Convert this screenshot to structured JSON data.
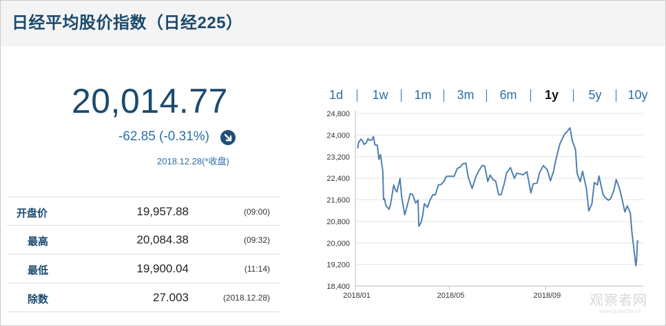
{
  "header": {
    "title": "日经平均股价指数（日经225）"
  },
  "quote": {
    "price": "20,014.77",
    "change": "-62.85 (-0.31%)",
    "datetime": "2018.12.28(*收盘)",
    "direction_icon": "down-arrow-icon"
  },
  "stats": [
    {
      "label": "开盘价",
      "value": "19,957.88",
      "time": "(09:00)"
    },
    {
      "label": "最高",
      "value": "20,084.38",
      "time": "(09:32)"
    },
    {
      "label": "最低",
      "value": "19,900.04",
      "time": "(11:14)"
    },
    {
      "label": "除数",
      "value": "27.003",
      "time": "(2018.12.28)"
    }
  ],
  "tabs": [
    "1d",
    "1w",
    "1m",
    "3m",
    "6m",
    "1y",
    "5y",
    "10y"
  ],
  "active_tab": "1y",
  "colors": {
    "accent": "#1b4a6e",
    "link": "#2a6ea6",
    "line": "#4f7fb0",
    "badge": "#1f4f7a"
  },
  "watermark": {
    "text": "观察者网",
    "sub": "www.guancha.cn"
  },
  "chart_data": {
    "type": "line",
    "title": "",
    "xlabel": "",
    "ylabel": "",
    "ylim": [
      18400,
      24800
    ],
    "yticks": [
      24800,
      24000,
      23200,
      22400,
      21600,
      20800,
      20000,
      19200,
      18400
    ],
    "ytick_labels": [
      "24,800",
      "24,000",
      "23,200",
      "22,400",
      "21,600",
      "20,800",
      "20,000",
      "19,200",
      "18,400"
    ],
    "x_range": [
      "2018-01-01",
      "2018-12-31"
    ],
    "xticks": [
      "2018-01-01",
      "2018-05-01",
      "2018-09-01"
    ],
    "xtick_labels": [
      "2018/01",
      "2018/05",
      "2018/09"
    ],
    "grid": true,
    "series": [
      {
        "x": [
          "2018-01-04",
          "2018-01-05",
          "2018-01-08",
          "2018-01-10",
          "2018-01-12",
          "2018-01-15",
          "2018-01-17",
          "2018-01-19",
          "2018-01-22",
          "2018-01-24",
          "2018-01-26",
          "2018-01-29",
          "2018-01-31",
          "2018-02-02",
          "2018-02-05",
          "2018-02-06",
          "2018-02-07",
          "2018-02-09",
          "2018-02-13",
          "2018-02-15",
          "2018-02-19",
          "2018-02-21",
          "2018-02-23",
          "2018-02-27",
          "2018-03-01",
          "2018-03-05",
          "2018-03-08",
          "2018-03-12",
          "2018-03-15",
          "2018-03-19",
          "2018-03-22",
          "2018-03-23",
          "2018-03-26",
          "2018-03-28",
          "2018-03-30",
          "2018-04-03",
          "2018-04-06",
          "2018-04-10",
          "2018-04-13",
          "2018-04-17",
          "2018-04-20",
          "2018-04-24",
          "2018-04-27",
          "2018-05-02",
          "2018-05-07",
          "2018-05-11",
          "2018-05-15",
          "2018-05-18",
          "2018-05-22",
          "2018-05-25",
          "2018-05-30",
          "2018-06-04",
          "2018-06-08",
          "2018-06-12",
          "2018-06-15",
          "2018-06-19",
          "2018-06-22",
          "2018-06-26",
          "2018-06-29",
          "2018-07-03",
          "2018-07-06",
          "2018-07-10",
          "2018-07-13",
          "2018-07-18",
          "2018-07-23",
          "2018-07-26",
          "2018-07-31",
          "2018-08-03",
          "2018-08-08",
          "2018-08-13",
          "2018-08-16",
          "2018-08-21",
          "2018-08-24",
          "2018-08-29",
          "2018-09-03",
          "2018-09-07",
          "2018-09-11",
          "2018-09-14",
          "2018-09-19",
          "2018-09-25",
          "2018-09-28",
          "2018-10-02",
          "2018-10-05",
          "2018-10-09",
          "2018-10-11",
          "2018-10-15",
          "2018-10-18",
          "2018-10-23",
          "2018-10-26",
          "2018-10-30",
          "2018-11-02",
          "2018-11-06",
          "2018-11-08",
          "2018-11-13",
          "2018-11-16",
          "2018-11-20",
          "2018-11-23",
          "2018-11-27",
          "2018-11-30",
          "2018-12-04",
          "2018-12-07",
          "2018-12-11",
          "2018-12-14",
          "2018-12-18",
          "2018-12-20",
          "2018-12-21",
          "2018-12-25",
          "2018-12-26",
          "2018-12-27",
          "2018-12-28"
        ],
        "y": [
          23506,
          23714,
          23849,
          23788,
          23653,
          23714,
          23868,
          23808,
          23816,
          23940,
          23632,
          23629,
          23098,
          23274,
          22682,
          21610,
          21645,
          21382,
          21245,
          21464,
          22149,
          21970,
          21892,
          22390,
          21724,
          21042,
          21368,
          21825,
          21804,
          21480,
          21591,
          20618,
          20766,
          21032,
          21454,
          21319,
          21568,
          21794,
          21778,
          22158,
          22162,
          22278,
          22468,
          22472,
          22467,
          22758,
          22818,
          22930,
          22960,
          22450,
          22018,
          22475,
          22694,
          22878,
          22851,
          22278,
          22516,
          22342,
          22305,
          21785,
          21788,
          22196,
          22597,
          22794,
          22396,
          22586,
          22553,
          22525,
          22644,
          21857,
          22192,
          22219,
          22601,
          22869,
          22707,
          22307,
          22664,
          23094,
          23672,
          24033,
          24120,
          24270,
          23783,
          23470,
          22590,
          22271,
          22658,
          22010,
          21184,
          21457,
          22243,
          22147,
          22486,
          21810,
          21680,
          21583,
          21646,
          21952,
          22351,
          22036,
          21678,
          21148,
          21374,
          21115,
          20393,
          20166,
          19155,
          19327,
          20077,
          20015
        ]
      }
    ]
  }
}
